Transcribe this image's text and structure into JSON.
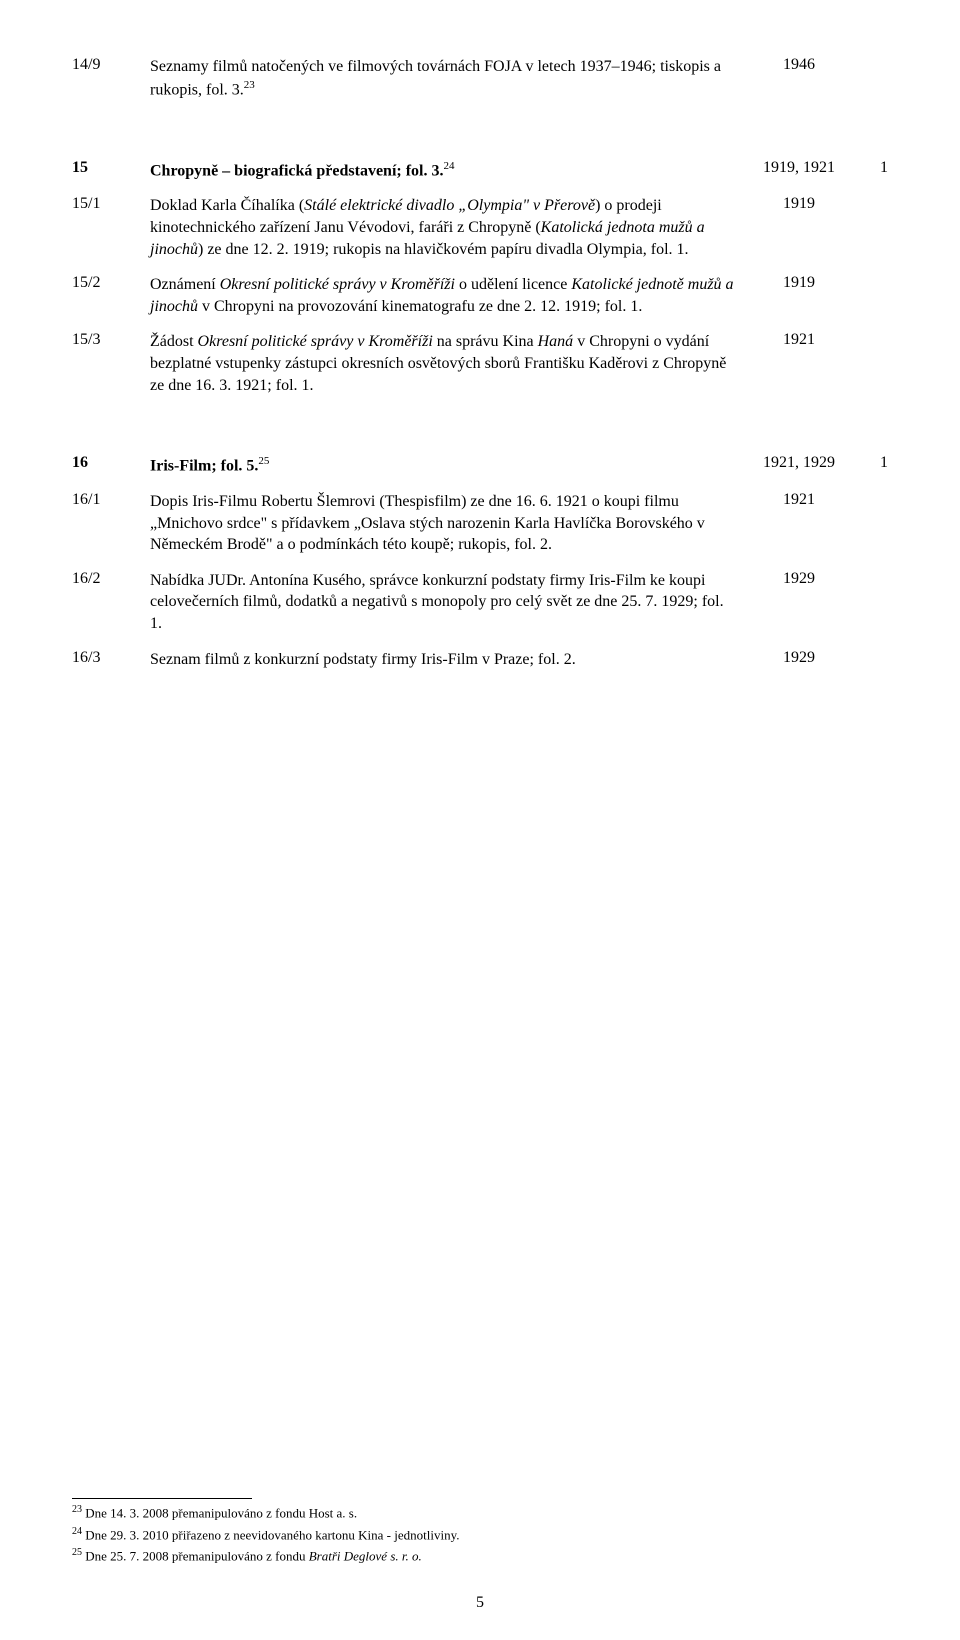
{
  "entry_14_9": {
    "id": "14/9",
    "body_parts": [
      "Seznamy filmů natočených ve filmových továrnách FOJA v letech 1937–1946; tiskopis a rukopis, fol. 3."
    ],
    "sup": "23",
    "year": "1946"
  },
  "section_15": {
    "id": "15",
    "title_plain": "Chropyně – biografická představení; fol. 3.",
    "sup": "24",
    "year": "1919, 1921",
    "n": "1"
  },
  "entry_15_1": {
    "id": "15/1",
    "p1a": "Doklad Karla Číhalíka (",
    "p1b_i": "Stálé elektrické divadlo „Olympia\" v Přerově",
    "p1c": ") o prodeji kinotechnického zařízení Janu Vévodovi, faráři z Chropyně (",
    "p1d_i": "Katolická jednota mužů a jinochů",
    "p1e": ") ze dne 12. 2. 1919; rukopis na hlavičkovém papíru divadla Olympia, fol. 1.",
    "year": "1919"
  },
  "entry_15_2": {
    "id": "15/2",
    "p1a": "Oznámení ",
    "p1b_i": "Okresní politické správy v Kroměříži",
    "p1c": " o udělení licence ",
    "p1d_i": "Katolické jednotě mužů a jinochů",
    "p1e": " v Chropyni na provozování kinematografu ze dne 2. 12. 1919; fol. 1.",
    "year": "1919"
  },
  "entry_15_3": {
    "id": "15/3",
    "p1a": "Žádost ",
    "p1b_i": "Okresní politické správy v Kroměříži",
    "p1c": " na správu Kina ",
    "p1d_i": "Haná",
    "p1e": " v Chropyni o vydání bezplatné vstupenky zástupci okresních osvětových sborů Františku Kaděrovi z Chropyně ze dne 16. 3. 1921; fol. 1.",
    "year": "1921"
  },
  "section_16": {
    "id": "16",
    "title_plain": "Iris-Film; fol. 5.",
    "sup": "25",
    "year": "1921, 1929",
    "n": "1"
  },
  "entry_16_1": {
    "id": "16/1",
    "body": "Dopis Iris-Filmu Robertu Šlemrovi (Thespisfilm) ze dne 16. 6. 1921 o koupi filmu „Mnichovo srdce\" s přídavkem „Oslava stých narozenin Karla Havlíčka Borovského v Německém Brodě\" a o podmínkách této koupě; rukopis, fol. 2.",
    "year": "1921"
  },
  "entry_16_2": {
    "id": "16/2",
    "body": "Nabídka JUDr. Antonína Kusého, správce konkurzní podstaty firmy Iris-Film ke koupi celovečerních filmů, dodatků a negativů s monopoly pro celý svět ze dne 25. 7. 1929; fol. 1.",
    "year": "1929"
  },
  "entry_16_3": {
    "id": "16/3",
    "body": "Seznam filmů z konkurzní podstaty firmy Iris-Film v Praze; fol. 2.",
    "year": "1929"
  },
  "footnotes": {
    "fn23": {
      "num": "23",
      "text": "Dne 14. 3. 2008 přemanipulováno z fondu Host a. s."
    },
    "fn24": {
      "num": "24",
      "text": "Dne 29. 3. 2010 přiřazeno z neevidovaného kartonu Kina - jednotliviny."
    },
    "fn25": {
      "num": "25",
      "text_a": "Dne 25. 7. 2008 přemanipulováno z fondu ",
      "text_b_i": "Bratři Deglové s. r. o."
    }
  },
  "page_number": "5"
}
